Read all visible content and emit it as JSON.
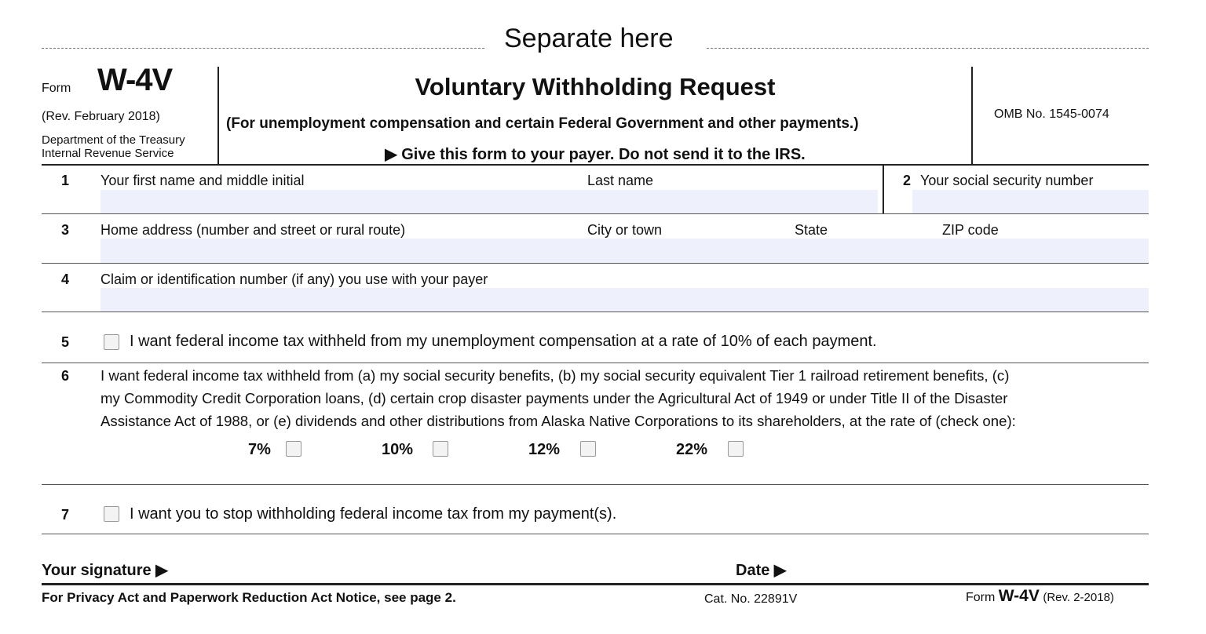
{
  "separator": {
    "label": "Separate here"
  },
  "header": {
    "form_word": "Form",
    "form_number": "W-4V",
    "revision": "(Rev. February 2018)",
    "department": "Department of the Treasury",
    "agency": "Internal Revenue Service",
    "title": "Voluntary Withholding Request",
    "subtitle": "(For unemployment compensation and certain Federal Government and other payments.)",
    "instruction": "Give this form to your payer. Do not send it to the IRS.",
    "omb": "OMB No. 1545-0074"
  },
  "lines": {
    "l1": {
      "num": "1",
      "first_name_label": "Your first name and middle initial",
      "last_name_label": "Last name",
      "first_name_value": "",
      "last_name_value": ""
    },
    "l2": {
      "num": "2",
      "label": "Your social security number",
      "value": ""
    },
    "l3": {
      "num": "3",
      "address_label": "Home address (number and street or rural route)",
      "city_label": "City or town",
      "state_label": "State",
      "zip_label": "ZIP code",
      "value": ""
    },
    "l4": {
      "num": "4",
      "label": "Claim or identification number (if any) you use with your payer",
      "value": ""
    },
    "l5": {
      "num": "5",
      "label": "I want federal income tax withheld from my unemployment compensation at a rate of 10% of each payment.",
      "checked": false
    },
    "l6": {
      "num": "6",
      "text1": "I want federal income tax withheld from (a) my social security benefits, (b) my social security equivalent Tier 1 railroad retirement benefits, (c)",
      "text2": "my Commodity Credit Corporation loans, (d) certain crop disaster payments under the Agricultural Act of 1949 or under Title II of the Disaster",
      "text3": "Assistance Act of 1988, or (e) dividends and other distributions from Alaska Native Corporations to its shareholders, at the rate of (check one):",
      "rates": [
        {
          "label": "7%",
          "checked": false
        },
        {
          "label": "10%",
          "checked": false
        },
        {
          "label": "12%",
          "checked": false
        },
        {
          "label": "22%",
          "checked": false
        }
      ]
    },
    "l7": {
      "num": "7",
      "label": "I want you to stop withholding federal income tax from my payment(s).",
      "checked": false
    }
  },
  "signature": {
    "label": "Your signature",
    "date_label": "Date"
  },
  "footer": {
    "privacy": "For Privacy Act and Paperwork Reduction Act Notice, see page 2.",
    "cat": "Cat. No. 22891V",
    "form_word": "Form",
    "form_number": "W-4V",
    "revision": "(Rev. 2-2018)"
  }
}
